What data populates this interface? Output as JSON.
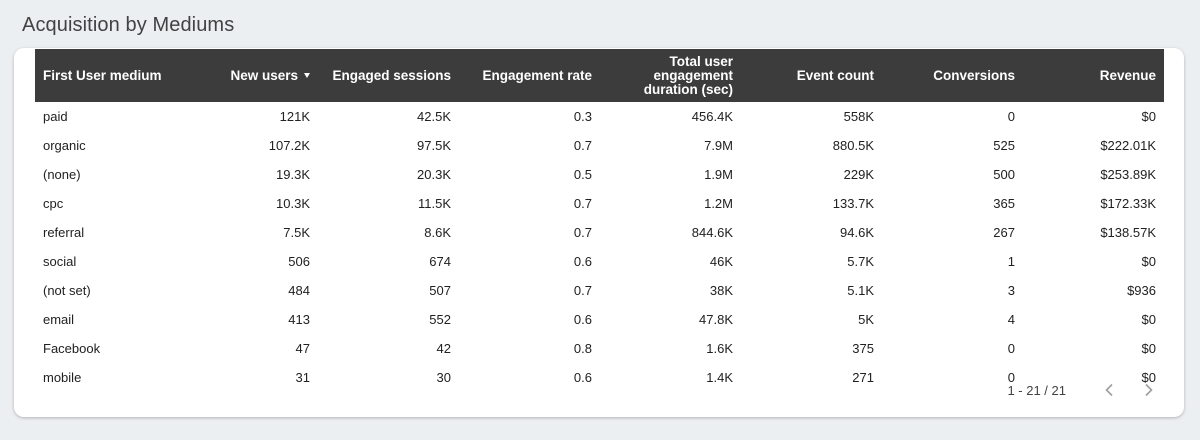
{
  "section": {
    "title": "Acquisition by Mediums"
  },
  "table": {
    "columns": [
      "First User medium",
      "New users",
      "Engaged sessions",
      "Engagement rate",
      "Total user engagement duration (sec)",
      "Event count",
      "Conversions",
      "Revenue"
    ],
    "header_lines": {
      "duration": [
        "Total user",
        "engagement",
        "duration (sec)"
      ]
    },
    "sorted_column": "New users",
    "sort_direction": "descending",
    "rows": [
      [
        "paid",
        "121K",
        "42.5K",
        "0.3",
        "456.4K",
        "558K",
        "0",
        "$0"
      ],
      [
        "organic",
        "107.2K",
        "97.5K",
        "0.7",
        "7.9M",
        "880.5K",
        "525",
        "$222.01K"
      ],
      [
        "(none)",
        "19.3K",
        "20.3K",
        "0.5",
        "1.9M",
        "229K",
        "500",
        "$253.89K"
      ],
      [
        "cpc",
        "10.3K",
        "11.5K",
        "0.7",
        "1.2M",
        "133.7K",
        "365",
        "$172.33K"
      ],
      [
        "referral",
        "7.5K",
        "8.6K",
        "0.7",
        "844.6K",
        "94.6K",
        "267",
        "$138.57K"
      ],
      [
        "social",
        "506",
        "674",
        "0.6",
        "46K",
        "5.7K",
        "1",
        "$0"
      ],
      [
        "(not set)",
        "484",
        "507",
        "0.7",
        "38K",
        "5.1K",
        "3",
        "$936"
      ],
      [
        "email",
        "413",
        "552",
        "0.6",
        "47.8K",
        "5K",
        "4",
        "$0"
      ],
      [
        "Facebook",
        "47",
        "42",
        "0.8",
        "1.6K",
        "375",
        "0",
        "$0"
      ],
      [
        "mobile",
        "31",
        "30",
        "0.6",
        "1.4K",
        "271",
        "0",
        "$0"
      ]
    ]
  },
  "pagination": {
    "range_label": "1 - 21 / 21",
    "prev_icon": "chevron-left-icon",
    "next_icon": "chevron-right-icon"
  },
  "colors": {
    "header_bg": "#3c3c3c",
    "header_text": "#ffffff",
    "page_bg": "#eceff1",
    "card_bg": "#ffffff"
  }
}
